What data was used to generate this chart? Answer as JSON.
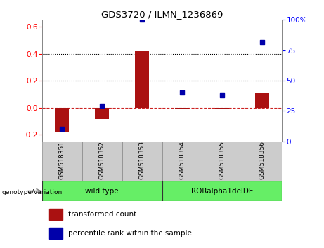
{
  "title": "GDS3720 / ILMN_1236869",
  "samples": [
    "GSM518351",
    "GSM518352",
    "GSM518353",
    "GSM518354",
    "GSM518355",
    "GSM518356"
  ],
  "transformed_count": [
    -0.18,
    -0.085,
    0.42,
    -0.012,
    -0.012,
    0.105
  ],
  "percentile_rank": [
    10,
    29,
    100,
    40,
    38,
    82
  ],
  "ylim_left": [
    -0.25,
    0.65
  ],
  "ylim_right": [
    0,
    100
  ],
  "yticks_left": [
    -0.2,
    0.0,
    0.2,
    0.4,
    0.6
  ],
  "yticks_right": [
    0,
    25,
    50,
    75,
    100
  ],
  "bar_color": "#aa1111",
  "scatter_color": "#0000aa",
  "group_label": "genotype/variation",
  "wt_label": "wild type",
  "ror_label": "RORalpha1delDE",
  "legend_bar": "transformed count",
  "legend_scatter": "percentile rank within the sample",
  "dotted_line_values": [
    0.2,
    0.4
  ],
  "zero_line_color": "#cc2222",
  "background_color": "#ffffff",
  "bar_width": 0.35,
  "cell_bg": "#cccccc",
  "green_color": "#66ee66"
}
